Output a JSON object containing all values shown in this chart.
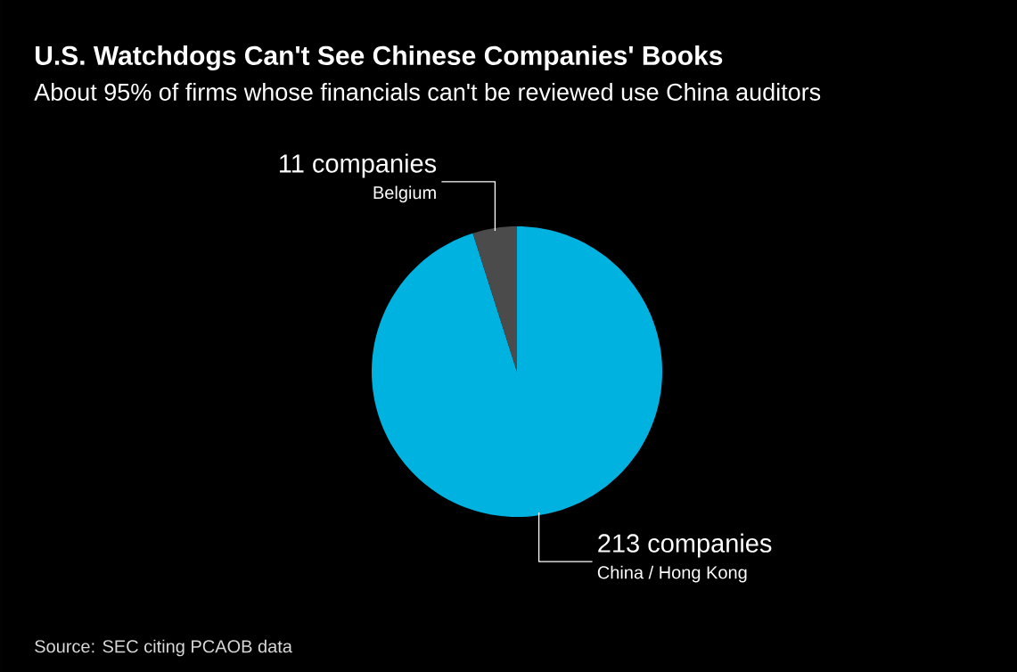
{
  "chart_data": {
    "type": "pie",
    "title": "U.S. Watchdogs Can't See Chinese Companies' Books",
    "subtitle": "About 95% of firms whose financials can't be reviewed use China auditors",
    "categories": [
      "China / Hong Kong",
      "Belgium"
    ],
    "values": [
      213,
      11
    ],
    "value_labels": [
      "213 companies",
      "11 companies"
    ],
    "colors": [
      "#00b2e0",
      "#4b4b4b"
    ],
    "legend": false,
    "annotations": [
      "Source: SEC citing PCAOB data"
    ]
  }
}
